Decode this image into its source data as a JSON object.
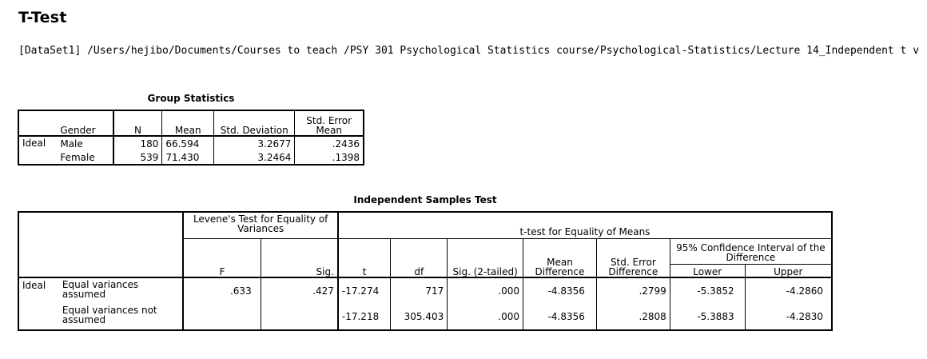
{
  "page": {
    "title": "T-Test",
    "dataset_path": "[DataSet1] /Users/hejibo/Documents/Courses to teach /PSY 301 Psychological Statistics course/Psychological-Statistics/Lecture 14_Independent t v"
  },
  "group_stats": {
    "caption": "Group Statistics",
    "headers": {
      "gender": "Gender",
      "n": "N",
      "mean": "Mean",
      "std_dev": "Std. Deviation",
      "std_err": "Std. Error Mean"
    },
    "variable": "Ideal",
    "rows": [
      {
        "gender": "Male",
        "n": "180",
        "mean": "66.594",
        "std_dev": "3.2677",
        "std_err": ".2436"
      },
      {
        "gender": "Female",
        "n": "539",
        "mean": "71.430",
        "std_dev": "3.2464",
        "std_err": ".1398"
      }
    ]
  },
  "indep_test": {
    "caption": "Independent Samples Test",
    "levene_header": "Levene's Test for Equality of Variances",
    "ttest_header": "t-test for Equality of Means",
    "ci_header": "95% Confidence Interval of the Difference",
    "headers": {
      "f": "F",
      "sig": "Sig.",
      "t": "t",
      "df": "df",
      "sig2": "Sig. (2-tailed)",
      "mean_diff": "Mean Difference",
      "se_diff": "Std. Error Difference",
      "lower": "Lower",
      "upper": "Upper"
    },
    "variable": "Ideal",
    "rows": [
      {
        "label": "Equal variances assumed",
        "f": ".633",
        "sig": ".427",
        "t": "-17.274",
        "df": "717",
        "sig2": ".000",
        "mean_diff": "-4.8356",
        "se_diff": ".2799",
        "lower": "-5.3852",
        "upper": "-4.2860"
      },
      {
        "label": "Equal variances not assumed",
        "f": "",
        "sig": "",
        "t": "-17.218",
        "df": "305.403",
        "sig2": ".000",
        "mean_diff": "-4.8356",
        "se_diff": ".2808",
        "lower": "-5.3883",
        "upper": "-4.2830"
      }
    ]
  }
}
